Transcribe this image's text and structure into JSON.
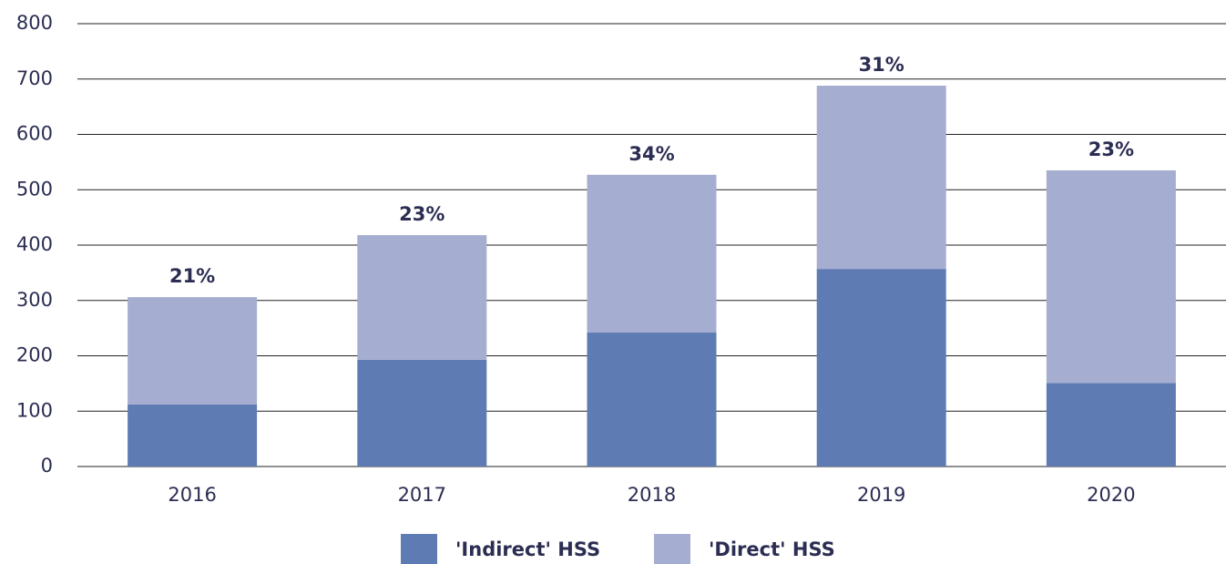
{
  "chart_data": {
    "type": "stacked_bar",
    "categories": [
      "2016",
      "2017",
      "2018",
      "2019",
      "2020"
    ],
    "series": [
      {
        "name": "'Indirect' HSS",
        "color": "#5f7bb3",
        "values": [
          112,
          193,
          242,
          357,
          151
        ]
      },
      {
        "name": "'Direct' HSS",
        "color": "#a5aed0",
        "values": [
          194,
          225,
          285,
          331,
          384
        ]
      }
    ],
    "annotations": [
      "21%",
      "23%",
      "34%",
      "31%",
      "23%"
    ],
    "ylim": [
      0,
      800
    ],
    "yticks": [
      0,
      100,
      200,
      300,
      400,
      500,
      600,
      700,
      800
    ],
    "grid": true
  }
}
